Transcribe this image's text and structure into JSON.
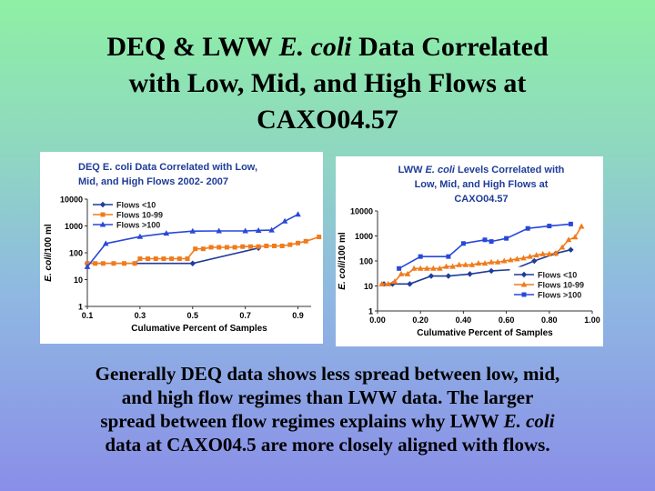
{
  "slide": {
    "title_line1_pre": "DEQ & LWW ",
    "title_line1_em": "E. coli",
    "title_line1_post": " Data Correlated",
    "title_line2": "with Low, Mid, and High Flows at",
    "title_line3": "CAXO04.57",
    "caption_line1": "Generally DEQ data shows less spread between low, mid,",
    "caption_line2": "and high flow regimes than LWW data.  The larger",
    "caption_line3_pre": "spread between flow regimes explains why LWW ",
    "caption_line3_em": "E. coli",
    "caption_line4": "data at CAXO04.5 are more closely aligned with flows."
  },
  "colors": {
    "low": "#1f3c99",
    "mid": "#f07b1c",
    "high": "#2848d8",
    "title_text": "#1f3c99"
  },
  "chart_data": [
    {
      "type": "line",
      "title": "DEQ E. coli Data Correlated with Low, Mid, and High Flows 2002- 2007",
      "title_line1": "DEQ E. coli Data Correlated with Low,",
      "title_line2": "Mid, and High Flows 2002- 2007",
      "xlabel": "Culumative Percent of Samples",
      "ylabel": "E. coli/100 ml",
      "x_ticks": [
        "0.1",
        "0.3",
        "0.5",
        "0.7",
        "0.9"
      ],
      "x_tick_values": [
        0.1,
        0.3,
        0.5,
        0.7,
        0.9
      ],
      "y_ticks": [
        "1",
        "10",
        "100",
        "1000",
        "10000"
      ],
      "y_tick_values": [
        1,
        10,
        100,
        1000,
        10000
      ],
      "xlim": [
        0.1,
        0.95
      ],
      "ylim": [
        1,
        10000
      ],
      "y_scale": "log",
      "legend_position": "top-left",
      "series": [
        {
          "name": "Flows <10",
          "marker": "diamond",
          "color_key": "low",
          "x": [
            0.1,
            0.5,
            0.75
          ],
          "y": [
            40,
            40,
            150
          ]
        },
        {
          "name": "Flows 10-99",
          "marker": "square",
          "color_key": "mid",
          "x": [
            0.1,
            0.13,
            0.16,
            0.2,
            0.24,
            0.28,
            0.3,
            0.33,
            0.36,
            0.39,
            0.42,
            0.45,
            0.48,
            0.51,
            0.54,
            0.57,
            0.6,
            0.63,
            0.66,
            0.69,
            0.72,
            0.75,
            0.78,
            0.81,
            0.84,
            0.87,
            0.9,
            0.93,
            0.98
          ],
          "y": [
            40,
            40,
            40,
            40,
            40,
            40,
            60,
            60,
            60,
            60,
            60,
            60,
            60,
            140,
            140,
            160,
            160,
            160,
            160,
            170,
            170,
            170,
            180,
            180,
            180,
            200,
            230,
            270,
            390
          ]
        },
        {
          "name": "Flows >100",
          "marker": "triangle",
          "color_key": "high",
          "x": [
            0.1,
            0.17,
            0.3,
            0.4,
            0.5,
            0.6,
            0.7,
            0.75,
            0.8,
            0.85,
            0.9
          ],
          "y": [
            30,
            220,
            400,
            530,
            640,
            650,
            650,
            680,
            700,
            1500,
            2700
          ]
        }
      ]
    },
    {
      "type": "line",
      "title": "LWW E. coli Levels Correlated with Low, Mid, and High Flows at CAXO04.57",
      "title_line1_pre": "LWW ",
      "title_line1_em": "E. coli",
      "title_line1_post": " Levels Correlated with",
      "title_line2": "Low, Mid, and High Flows at",
      "title_line3": "CAXO04.57",
      "xlabel": "Culumative Percent of Samples",
      "ylabel": "E. coli/100 ml",
      "x_ticks": [
        "0.00",
        "0.20",
        "0.40",
        "0.60",
        "0.80",
        "1.00"
      ],
      "x_tick_values": [
        0,
        0.2,
        0.4,
        0.6,
        0.8,
        1.0
      ],
      "y_ticks": [
        "1",
        "10",
        "100",
        "1000",
        "10000"
      ],
      "y_tick_values": [
        1,
        10,
        100,
        1000,
        10000
      ],
      "xlim": [
        0,
        1
      ],
      "ylim": [
        1,
        10000
      ],
      "y_scale": "log",
      "legend_position": "bottom-right",
      "series": [
        {
          "name": "Flows <10",
          "marker": "diamond",
          "color_key": "low",
          "x": [
            0.03,
            0.07,
            0.15,
            0.25,
            0.33,
            0.43,
            0.53,
            0.63,
            0.73,
            0.83,
            0.9
          ],
          "y": [
            12,
            12,
            12,
            25,
            25,
            30,
            40,
            45,
            100,
            200,
            280
          ]
        },
        {
          "name": "Flows 10-99",
          "marker": "triangle",
          "color_key": "mid",
          "x": [
            0.02,
            0.05,
            0.08,
            0.11,
            0.14,
            0.17,
            0.2,
            0.23,
            0.26,
            0.29,
            0.32,
            0.35,
            0.38,
            0.41,
            0.44,
            0.47,
            0.5,
            0.53,
            0.56,
            0.59,
            0.62,
            0.65,
            0.68,
            0.71,
            0.74,
            0.77,
            0.8,
            0.83,
            0.86,
            0.89,
            0.92,
            0.95
          ],
          "y": [
            12,
            12,
            15,
            30,
            30,
            50,
            50,
            50,
            50,
            50,
            60,
            60,
            70,
            70,
            70,
            80,
            80,
            90,
            90,
            100,
            110,
            120,
            130,
            150,
            170,
            190,
            190,
            200,
            350,
            700,
            900,
            2400
          ]
        },
        {
          "name": "Flows >100",
          "marker": "square",
          "color_key": "high",
          "x": [
            0.1,
            0.2,
            0.33,
            0.4,
            0.5,
            0.53,
            0.6,
            0.7,
            0.8,
            0.9
          ],
          "y": [
            50,
            150,
            150,
            500,
            700,
            600,
            800,
            2000,
            2500,
            3000
          ]
        }
      ]
    }
  ]
}
